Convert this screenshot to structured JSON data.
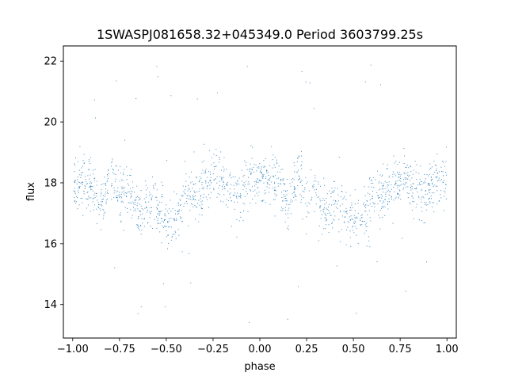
{
  "chart_data": {
    "type": "scatter",
    "title": "1SWASPJ081658.32+045349.0 Period 3603799.25s",
    "xlabel": "phase",
    "ylabel": "flux",
    "xlim": [
      -1.05,
      1.05
    ],
    "ylim": [
      12.9,
      22.5
    ],
    "xticks": [
      -1.0,
      -0.75,
      -0.5,
      -0.25,
      0.0,
      0.25,
      0.5,
      0.75,
      1.0
    ],
    "xtick_labels": [
      "−1.00",
      "−0.75",
      "−0.50",
      "−0.25",
      "0.00",
      "0.25",
      "0.50",
      "0.75",
      "1.00"
    ],
    "yticks": [
      14,
      16,
      18,
      20,
      22
    ],
    "ytick_labels": [
      "14",
      "16",
      "18",
      "20",
      "22"
    ],
    "grid": false,
    "point_color": "#1f77b4",
    "series": [
      {
        "phase_range": [
          -1.0,
          1.0
        ],
        "period_in_phase": 1.0,
        "profile_phase": [
          0.0,
          0.05,
          0.1,
          0.15,
          0.2,
          0.25,
          0.3,
          0.35,
          0.4,
          0.45,
          0.5,
          0.55,
          0.6,
          0.65,
          0.7,
          0.75,
          0.8,
          0.85,
          0.9,
          0.95,
          1.0
        ],
        "profile_flux": [
          18.0,
          18.0,
          17.9,
          17.2,
          18.3,
          17.6,
          17.8,
          17.0,
          17.4,
          17.2,
          16.7,
          16.8,
          17.6,
          17.6,
          17.8,
          18.2,
          18.0,
          17.6,
          17.7,
          18.2,
          18.0
        ],
        "typical_spread": 0.7,
        "outlier_range": [
          13.4,
          22.1
        ]
      }
    ]
  }
}
